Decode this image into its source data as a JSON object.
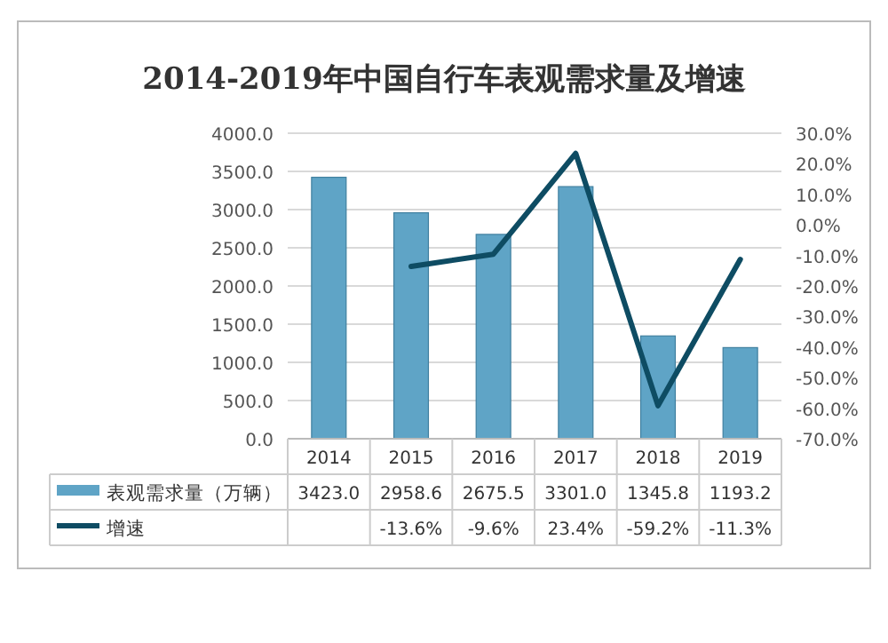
{
  "chart_data": {
    "type": "bar",
    "title": "2014-2019年中国自行车表观需求量及增速",
    "categories": [
      "2014",
      "2015",
      "2016",
      "2017",
      "2018",
      "2019"
    ],
    "series": [
      {
        "name": "表观需求量（万辆）",
        "color": "#5fa4c6",
        "values": [
          3423.0,
          2958.6,
          2675.5,
          3301.0,
          1345.8,
          1193.2
        ],
        "value_labels": [
          "3423.0",
          "2958.6",
          "2675.5",
          "3301.0",
          "1345.8",
          "1193.2"
        ]
      },
      {
        "name": "增速",
        "type": "line",
        "axis": "y2",
        "color": "#0e4c63",
        "values": [
          null,
          -13.6,
          -9.6,
          23.4,
          -59.2,
          -11.3
        ],
        "value_labels": [
          null,
          "-13.6%",
          "-9.6%",
          "23.4%",
          "-59.2%",
          "-11.3%"
        ]
      }
    ],
    "ylim": [
      0,
      4000
    ],
    "yticks": [
      {
        "value": 0,
        "label": "0.0"
      },
      {
        "value": 500,
        "label": "500.0"
      },
      {
        "value": 1000,
        "label": "1000.0"
      },
      {
        "value": 1500,
        "label": "1500.0"
      },
      {
        "value": 2000,
        "label": "2000.0"
      },
      {
        "value": 2500,
        "label": "2500.0"
      },
      {
        "value": 3000,
        "label": "3000.0"
      },
      {
        "value": 3500,
        "label": "3500.0"
      },
      {
        "value": 4000,
        "label": "4000.0"
      }
    ],
    "y2lim": [
      -70,
      30
    ],
    "y2ticks": [
      {
        "value": -70,
        "label": "-70.0%"
      },
      {
        "value": -60,
        "label": "-60.0%"
      },
      {
        "value": -50,
        "label": "-50.0%"
      },
      {
        "value": -40,
        "label": "-40.0%"
      },
      {
        "value": -30,
        "label": "-30.0%"
      },
      {
        "value": -20,
        "label": "-20.0%"
      },
      {
        "value": -10,
        "label": "-10.0%"
      },
      {
        "value": 0,
        "label": "0.0%"
      },
      {
        "value": 10,
        "label": "10.0%"
      },
      {
        "value": 20,
        "label": "20.0%"
      },
      {
        "value": 30,
        "label": "30.0%"
      }
    ],
    "grid": "y",
    "legend": "bottom",
    "marker": "none"
  }
}
